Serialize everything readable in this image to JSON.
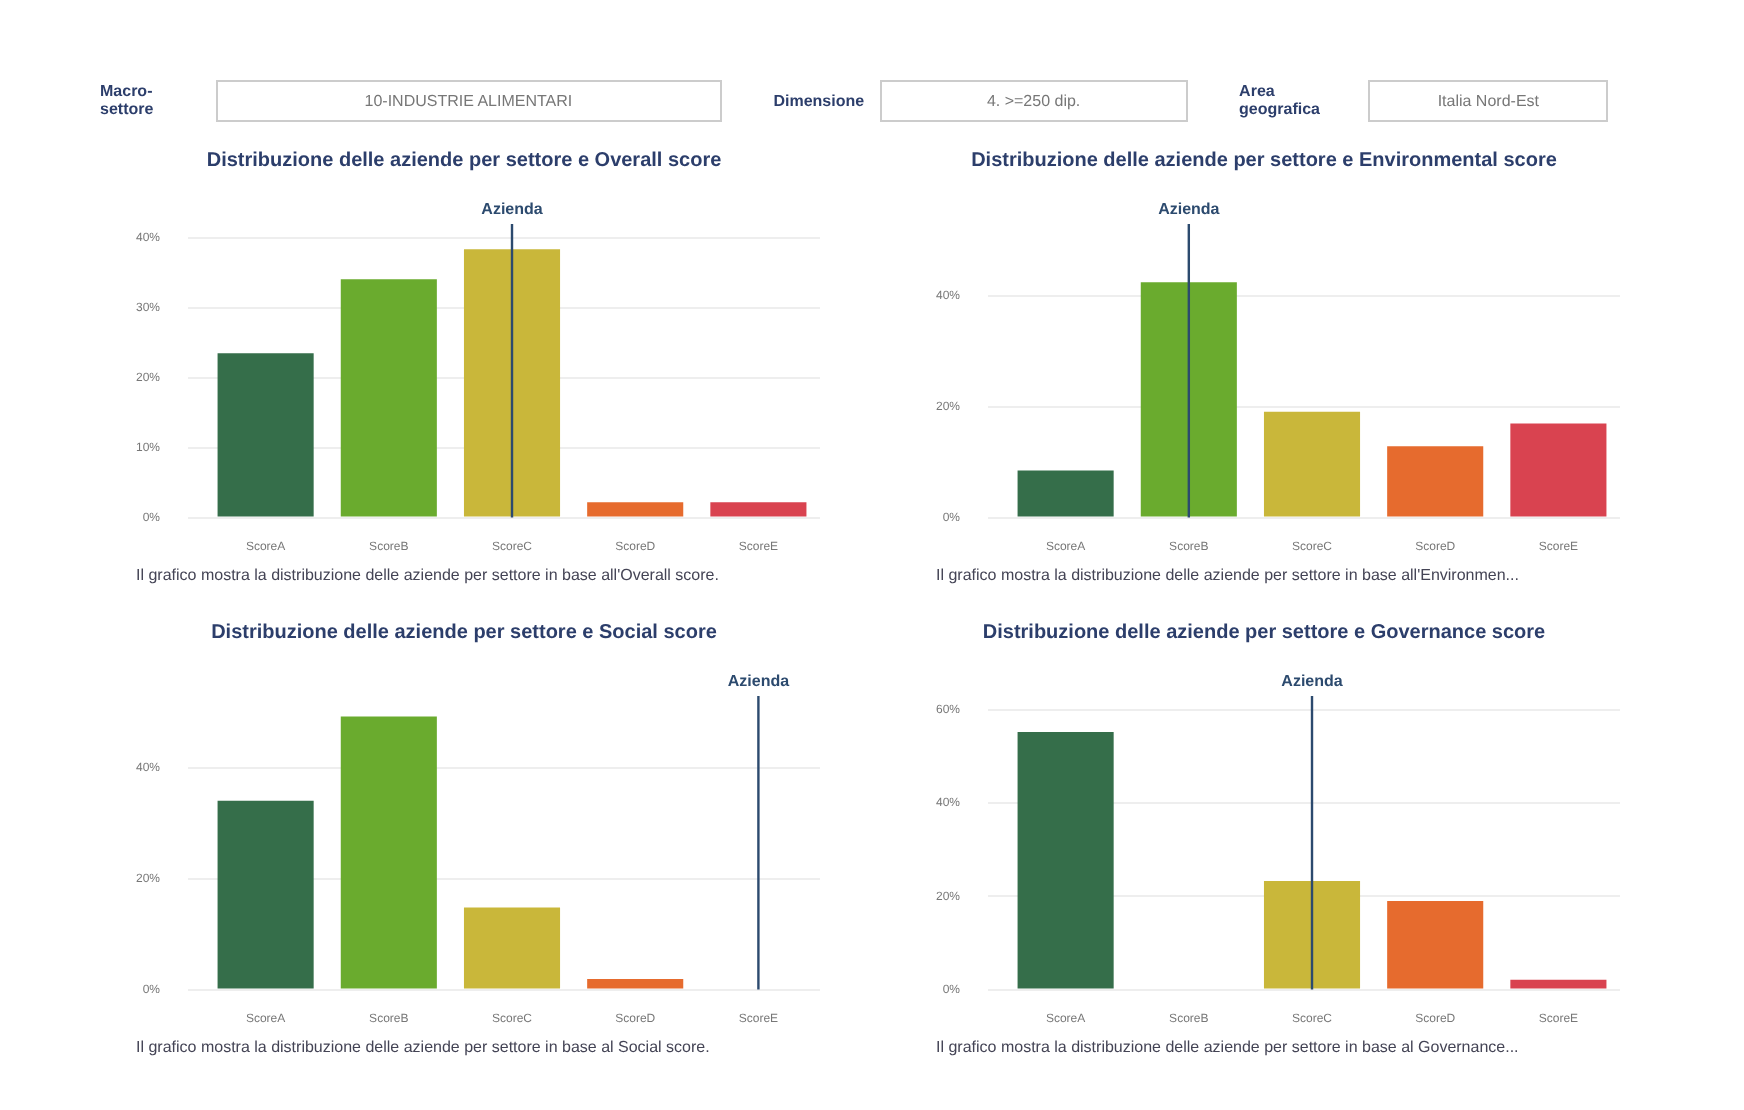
{
  "chart_data": [
    {
      "type": "other",
      "annotations": [
        "Macro-settore",
        "10-INDUSTRIE ALIMENTARI",
        "Dimensione",
        "4. >=250 dip.",
        "Area geografica",
        "Italia Nord-Est"
      ]
    },
    {
      "type": "bar",
      "title": "Distribuzione delle aziende per settore e Overall score",
      "categories": [
        "ScoreA",
        "ScoreB",
        "ScoreC",
        "ScoreD",
        "ScoreE"
      ],
      "values": [
        23.5,
        34.1,
        38.4,
        2.2,
        2.2
      ],
      "colors": [
        "#356e4a",
        "#6aab2e",
        "#c9b73a",
        "#e66b2e",
        "#d94350"
      ],
      "ylim": [
        0,
        42
      ],
      "yticks": [
        {
          "value": 0,
          "label": "0%"
        },
        {
          "value": 10,
          "label": "10%"
        },
        {
          "value": 20,
          "label": "20%"
        },
        {
          "value": 30,
          "label": "30%"
        },
        {
          "value": 40,
          "label": "40%"
        }
      ],
      "grid": "y",
      "ref_lines": [
        {
          "axis": "x",
          "value": "ScoreC",
          "label": "Azienda",
          "color": "#2c4a6e"
        }
      ],
      "annotations": [
        "Il grafico mostra la distribuzione delle aziende per settore in base all'Overall score."
      ]
    },
    {
      "type": "bar",
      "title": "Distribuzione delle aziende per settore e Environmental score",
      "categories": [
        "ScoreA",
        "ScoreB",
        "ScoreC",
        "ScoreD",
        "ScoreE"
      ],
      "values": [
        8.5,
        42.5,
        19.1,
        12.9,
        17.0
      ],
      "colors": [
        "#356e4a",
        "#6aab2e",
        "#c9b73a",
        "#e66b2e",
        "#d94350"
      ],
      "ylim": [
        0,
        53
      ],
      "yticks": [
        {
          "value": 0,
          "label": "0%"
        },
        {
          "value": 20,
          "label": "20%"
        },
        {
          "value": 40,
          "label": "40%"
        }
      ],
      "grid": "y",
      "ref_lines": [
        {
          "axis": "x",
          "value": "ScoreB",
          "label": "Azienda",
          "color": "#2c4a6e"
        }
      ],
      "annotations": [
        "Il grafico mostra la distribuzione delle aziende per settore in base all'Environmen..."
      ]
    },
    {
      "type": "bar",
      "title": "Distribuzione delle aziende per settore e Social score",
      "categories": [
        "ScoreA",
        "ScoreB",
        "ScoreC",
        "ScoreD",
        "ScoreE"
      ],
      "values": [
        34.1,
        49.3,
        14.8,
        1.9,
        0
      ],
      "colors": [
        "#356e4a",
        "#6aab2e",
        "#c9b73a",
        "#e66b2e",
        "#d94350"
      ],
      "ylim": [
        0,
        53
      ],
      "yticks": [
        {
          "value": 0,
          "label": "0%"
        },
        {
          "value": 20,
          "label": "20%"
        },
        {
          "value": 40,
          "label": "40%"
        }
      ],
      "grid": "y",
      "ref_lines": [
        {
          "axis": "x",
          "value": "ScoreE",
          "label": "Azienda",
          "color": "#2c4a6e"
        }
      ],
      "annotations": [
        "Il grafico mostra la distribuzione delle aziende per settore in base al Social score."
      ]
    },
    {
      "type": "bar",
      "title": "Distribuzione delle aziende per settore e Governance score",
      "categories": [
        "ScoreA",
        "ScoreB",
        "ScoreC",
        "ScoreD",
        "ScoreE"
      ],
      "values": [
        55.3,
        0,
        23.3,
        19.0,
        2.1
      ],
      "colors": [
        "#356e4a",
        "#6aab2e",
        "#c9b73a",
        "#e66b2e",
        "#d94350"
      ],
      "ylim": [
        0,
        63
      ],
      "yticks": [
        {
          "value": 0,
          "label": "0%"
        },
        {
          "value": 20,
          "label": "20%"
        },
        {
          "value": 40,
          "label": "40%"
        },
        {
          "value": 60,
          "label": "60%"
        }
      ],
      "grid": "y",
      "ref_lines": [
        {
          "axis": "x",
          "value": "ScoreC",
          "label": "Azienda",
          "color": "#2c4a6e"
        }
      ],
      "annotations": [
        "Il grafico mostra la distribuzione delle aziende per settore in base al Governance..."
      ]
    }
  ]
}
